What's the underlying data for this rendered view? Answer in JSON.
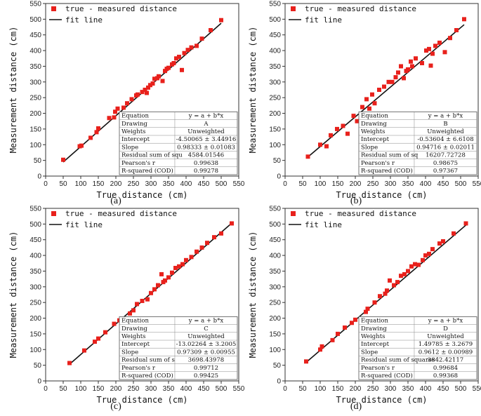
{
  "chart_data": [
    {
      "panel": "A",
      "caption": "(a)",
      "type": "scatter",
      "xlabel": "True distance (cm)",
      "ylabel": "Measurement distance (cm)",
      "xlim": [
        0,
        550
      ],
      "ylim": [
        0,
        550
      ],
      "xticks": [
        0,
        50,
        100,
        150,
        200,
        250,
        300,
        350,
        400,
        450,
        500,
        550
      ],
      "yticks": [
        0,
        50,
        100,
        150,
        200,
        250,
        300,
        350,
        400,
        450,
        500,
        550
      ],
      "legend": {
        "placement": "top-left",
        "markers": "true - measured distance",
        "line": "fit line"
      },
      "series": [
        {
          "name": "true - measured distance",
          "color": "#e8211c",
          "x": [
            50,
            97,
            102,
            128,
            145,
            150,
            181,
            195,
            198,
            205,
            222,
            232,
            245,
            258,
            262,
            275,
            283,
            288,
            292,
            298,
            305,
            310,
            318,
            322,
            333,
            340,
            345,
            350,
            360,
            365,
            372,
            380,
            388,
            395,
            405,
            415,
            430,
            445,
            470,
            500
          ],
          "y": [
            52,
            95,
            97,
            122,
            140,
            152,
            185,
            187,
            205,
            215,
            218,
            232,
            245,
            257,
            260,
            268,
            275,
            265,
            282,
            290,
            295,
            310,
            312,
            318,
            303,
            335,
            342,
            345,
            356,
            360,
            375,
            380,
            338,
            392,
            402,
            410,
            415,
            438,
            465,
            497
          ]
        },
        {
          "name": "fit line",
          "color": "#111111",
          "x": [
            50,
            500
          ],
          "y": [
            44.66,
            487.16
          ]
        }
      ],
      "stats": {
        "header": [
          "Equation",
          "y = a + b*x"
        ],
        "rows": [
          [
            "Drawing",
            "A"
          ],
          [
            "Weights",
            "Unweighted"
          ],
          [
            "Intercept",
            "-4.50065 ± 3.44916"
          ],
          [
            "Slope",
            "0.98333 ± 0.01083"
          ],
          [
            "Residual sum of squ",
            "4584.01546"
          ],
          [
            "Pearson's r",
            "0.99638"
          ],
          [
            "R-squared (COD)",
            "0.99278"
          ]
        ]
      }
    },
    {
      "panel": "B",
      "caption": "(b)",
      "type": "scatter",
      "xlabel": "True distance (cm)",
      "ylabel": "Measurement distance (cm)",
      "xlim": [
        0,
        550
      ],
      "ylim": [
        0,
        550
      ],
      "xticks": [
        0,
        50,
        100,
        150,
        200,
        250,
        300,
        350,
        400,
        450,
        500,
        550
      ],
      "yticks": [
        0,
        50,
        100,
        150,
        200,
        250,
        300,
        350,
        400,
        450,
        500,
        550
      ],
      "legend": {
        "placement": "top-left",
        "markers": "true - measured distance",
        "line": "fit line"
      },
      "series": [
        {
          "name": "true - measured distance",
          "color": "#e8211c",
          "x": [
            65,
            100,
            118,
            130,
            148,
            165,
            178,
            195,
            205,
            220,
            232,
            240,
            248,
            255,
            268,
            282,
            295,
            305,
            315,
            322,
            330,
            338,
            345,
            350,
            358,
            362,
            372,
            390,
            402,
            410,
            415,
            420,
            428,
            440,
            455,
            470,
            488,
            510
          ],
          "y": [
            62,
            100,
            95,
            130,
            150,
            160,
            135,
            192,
            175,
            220,
            245,
            215,
            260,
            232,
            275,
            285,
            300,
            300,
            315,
            330,
            350,
            312,
            335,
            340,
            365,
            350,
            375,
            360,
            400,
            405,
            352,
            390,
            415,
            425,
            395,
            440,
            465,
            500
          ]
        },
        {
          "name": "fit line",
          "color": "#111111",
          "x": [
            65,
            510
          ],
          "y": [
            61.03,
            482.52
          ]
        }
      ],
      "stats": {
        "header": [
          "Equation",
          "y = a + b*x"
        ],
        "rows": [
          [
            "Drawing",
            "B"
          ],
          [
            "Weights",
            "Unweighted"
          ],
          [
            "Intercept",
            "-0.53604 ± 6.6108"
          ],
          [
            "Slope",
            "0.94716 ± 0.02011"
          ],
          [
            "Residual sum of sq",
            "16207.72728"
          ],
          [
            "Pearson's r",
            "0.98675"
          ],
          [
            "R-squared (COD)",
            "0.97367"
          ]
        ]
      }
    },
    {
      "panel": "C",
      "caption": "(c)",
      "type": "scatter",
      "xlabel": "True distance (cm)",
      "ylabel": "Measurement distance (cm)",
      "xlim": [
        0,
        550
      ],
      "ylim": [
        0,
        550
      ],
      "xticks": [
        0,
        50,
        100,
        150,
        200,
        250,
        300,
        350,
        400,
        450,
        500,
        550
      ],
      "yticks": [
        0,
        50,
        100,
        150,
        200,
        250,
        300,
        350,
        400,
        450,
        500,
        550
      ],
      "legend": {
        "placement": "top-left",
        "markers": "true - measured distance",
        "line": "fit line"
      },
      "series": [
        {
          "name": "true - measured distance",
          "color": "#e8211c",
          "x": [
            68,
            110,
            140,
            150,
            170,
            195,
            210,
            220,
            240,
            250,
            260,
            275,
            290,
            300,
            310,
            320,
            330,
            335,
            340,
            350,
            360,
            370,
            380,
            390,
            400,
            415,
            430,
            445,
            460,
            480,
            500,
            530
          ],
          "y": [
            57,
            97,
            125,
            135,
            155,
            182,
            193,
            188,
            215,
            225,
            245,
            255,
            260,
            280,
            292,
            305,
            340,
            315,
            320,
            330,
            345,
            360,
            365,
            372,
            385,
            395,
            412,
            425,
            440,
            458,
            470,
            502
          ]
        },
        {
          "name": "fit line",
          "color": "#111111",
          "x": [
            68,
            530
          ],
          "y": [
            53.14,
            502.69
          ]
        }
      ],
      "stats": {
        "header": [
          "Equation",
          "y = a + b*x"
        ],
        "rows": [
          [
            "Drawing",
            "C"
          ],
          [
            "Weights",
            "Unweighted"
          ],
          [
            "Intercept",
            "-13.02264 ± 3.2005"
          ],
          [
            "Slope",
            "0.97309 ± 0.00955"
          ],
          [
            "Residual sum of s",
            "3698.43978"
          ],
          [
            "Pearson's r",
            "0.99712"
          ],
          [
            "R-squared (COD)",
            "0.99425"
          ]
        ]
      }
    },
    {
      "panel": "D",
      "caption": "(d)",
      "type": "scatter",
      "xlabel": "True distance (cm)",
      "ylabel": "Measurement distance (cm)",
      "xlim": [
        0,
        550
      ],
      "ylim": [
        0,
        550
      ],
      "xticks": [
        0,
        50,
        100,
        150,
        200,
        250,
        300,
        350,
        400,
        450,
        500,
        550
      ],
      "yticks": [
        0,
        50,
        100,
        150,
        200,
        250,
        300,
        350,
        400,
        450,
        500,
        550
      ],
      "legend": {
        "placement": "top-left",
        "markers": "true - measured distance",
        "line": "fit line"
      },
      "series": [
        {
          "name": "true - measured distance",
          "color": "#e8211c",
          "x": [
            60,
            100,
            105,
            135,
            150,
            170,
            190,
            200,
            230,
            235,
            255,
            270,
            285,
            290,
            298,
            310,
            320,
            330,
            340,
            350,
            360,
            370,
            380,
            392,
            400,
            410,
            420,
            440,
            450,
            480,
            515
          ],
          "y": [
            62,
            100,
            110,
            130,
            150,
            170,
            185,
            195,
            220,
            230,
            250,
            270,
            278,
            288,
            320,
            305,
            315,
            335,
            340,
            350,
            365,
            372,
            370,
            385,
            400,
            405,
            420,
            438,
            445,
            470,
            502
          ]
        },
        {
          "name": "fit line",
          "color": "#111111",
          "x": [
            60,
            515
          ],
          "y": [
            59.17,
            496.52
          ]
        }
      ],
      "stats": {
        "header": [
          "Equation",
          "y = a + b*x"
        ],
        "rows": [
          [
            "Drawing",
            "D"
          ],
          [
            "Weights",
            "Unweighted"
          ],
          [
            "Intercept",
            "1.49785 ± 3.2679"
          ],
          [
            "Slope",
            "0.9612 ± 0.00989"
          ],
          [
            "Residual sum of squares",
            "3842.42117"
          ],
          [
            "Pearson's r",
            "0.99684"
          ],
          [
            "R-squared (COD)",
            "0.99368"
          ]
        ]
      }
    }
  ]
}
